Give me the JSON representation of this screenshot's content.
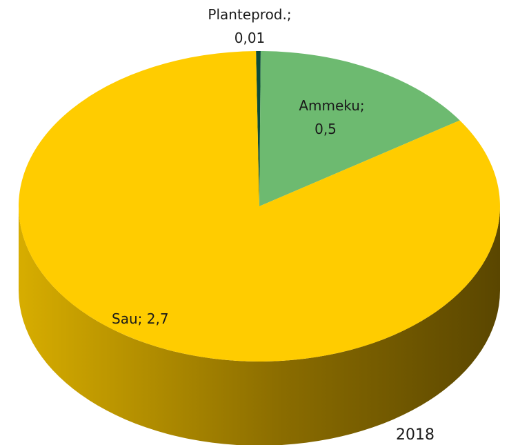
{
  "chart_data": {
    "type": "pie",
    "style": "3d",
    "slices": [
      {
        "label": "Planteprod.",
        "value": 0.01,
        "value_text": "0,01",
        "color": "#0b4a3a"
      },
      {
        "label": "Ammeku",
        "value": 0.5,
        "value_text": "0,5",
        "color": "#6dba70"
      },
      {
        "label": "Sau",
        "value": 2.7,
        "value_text": "2,7",
        "color": "#ffcc00"
      }
    ],
    "annotation": "2018",
    "legend": "none"
  }
}
